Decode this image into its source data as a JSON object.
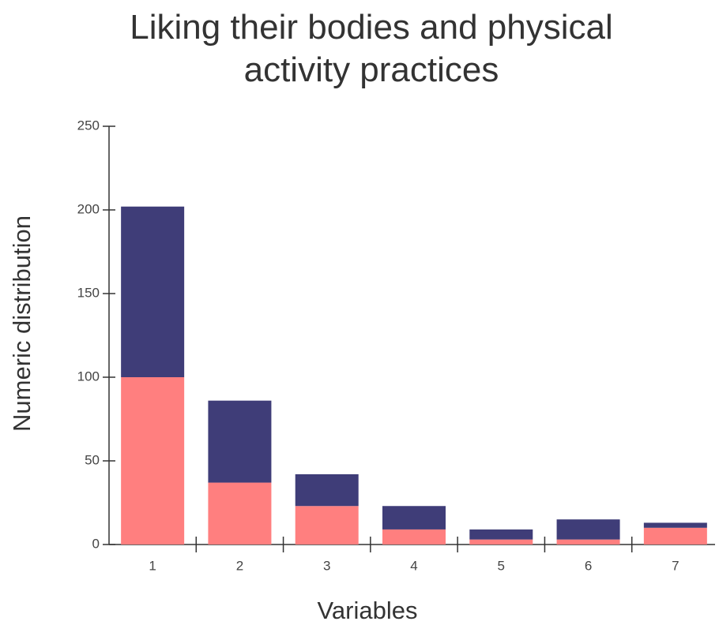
{
  "chart_data": {
    "type": "stacked_bar",
    "title": "Liking their bodies and physical activity practices",
    "x_label": "Variables",
    "y_label": "Numeric distribution",
    "categories": [
      "1",
      "2",
      "3",
      "4",
      "5",
      "6",
      "7"
    ],
    "series": [
      {
        "color": "#ff7f7f",
        "values": [
          100,
          37,
          23,
          9,
          3,
          3,
          10
        ]
      },
      {
        "color": "#3f3d78",
        "values": [
          102,
          49,
          19,
          14,
          6,
          12,
          3
        ]
      }
    ],
    "ylim": [
      0,
      250
    ],
    "yticks": [
      0,
      50,
      100,
      150,
      200,
      250
    ]
  }
}
